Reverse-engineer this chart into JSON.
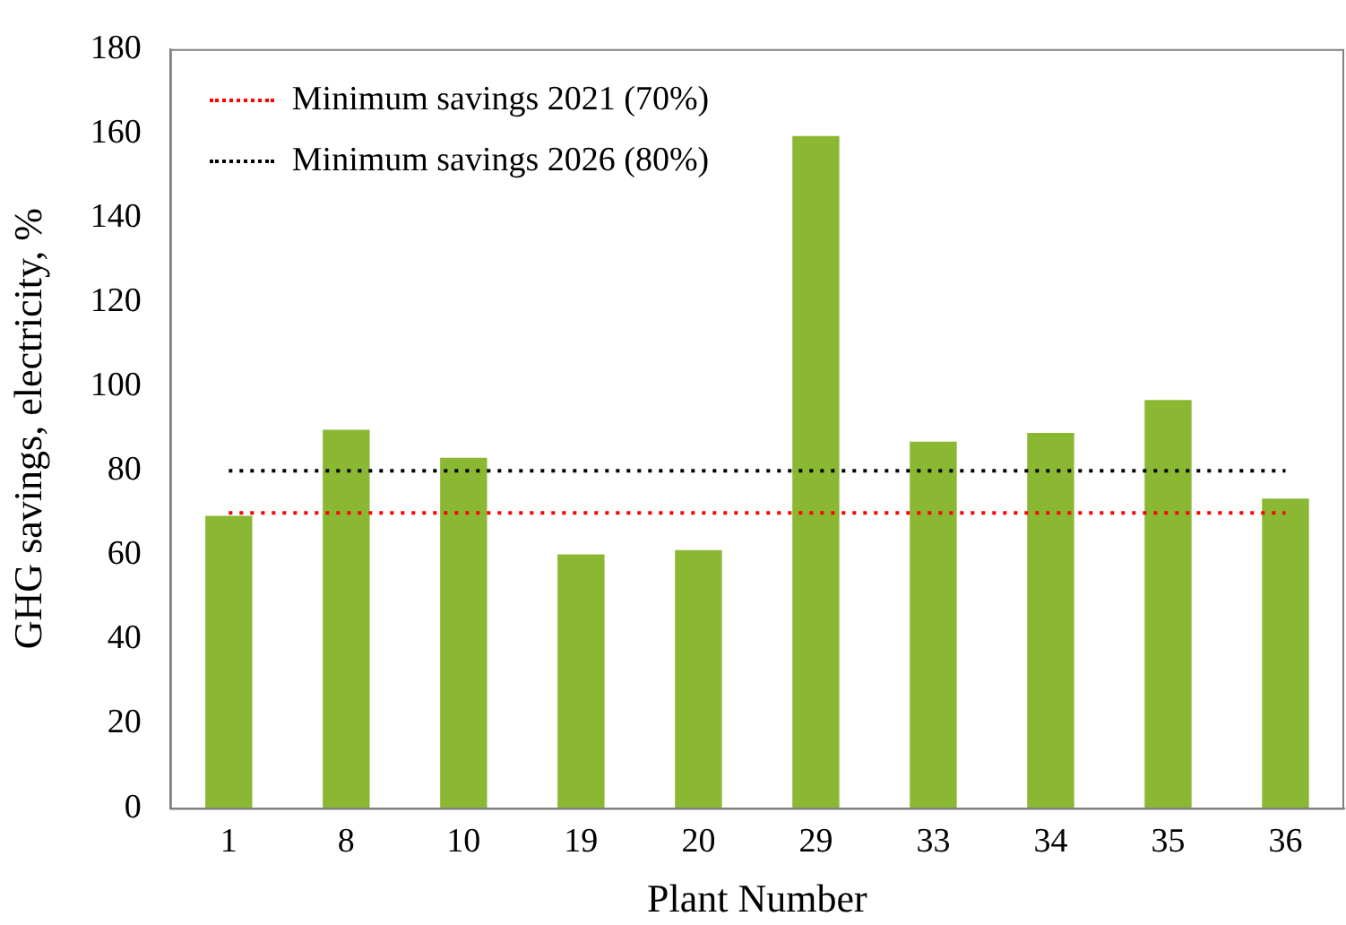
{
  "chart_data": {
    "type": "bar",
    "xlabel": "Plant Number",
    "ylabel": "GHG savings, electricity, %",
    "categories": [
      "1",
      "8",
      "10",
      "19",
      "20",
      "29",
      "33",
      "34",
      "35",
      "36"
    ],
    "values": [
      69.3,
      89.7,
      83.1,
      60.2,
      61.2,
      159.4,
      86.9,
      89.0,
      96.8,
      73.4
    ],
    "color": "#8ab833",
    "ylim": [
      0,
      180
    ],
    "yticks": [
      0,
      20,
      40,
      60,
      80,
      100,
      120,
      140,
      160,
      180
    ],
    "grid": false,
    "legend": "top left",
    "ref_lines": [
      {
        "axis": "y",
        "value": 70,
        "label": "Minimum savings 2021 (70%)",
        "color": "#ff0000",
        "line_style": "dotted"
      },
      {
        "axis": "y",
        "value": 80,
        "label": "Minimum savings 2026 (80%)",
        "color": "#000000",
        "line_style": "dotted"
      }
    ]
  }
}
